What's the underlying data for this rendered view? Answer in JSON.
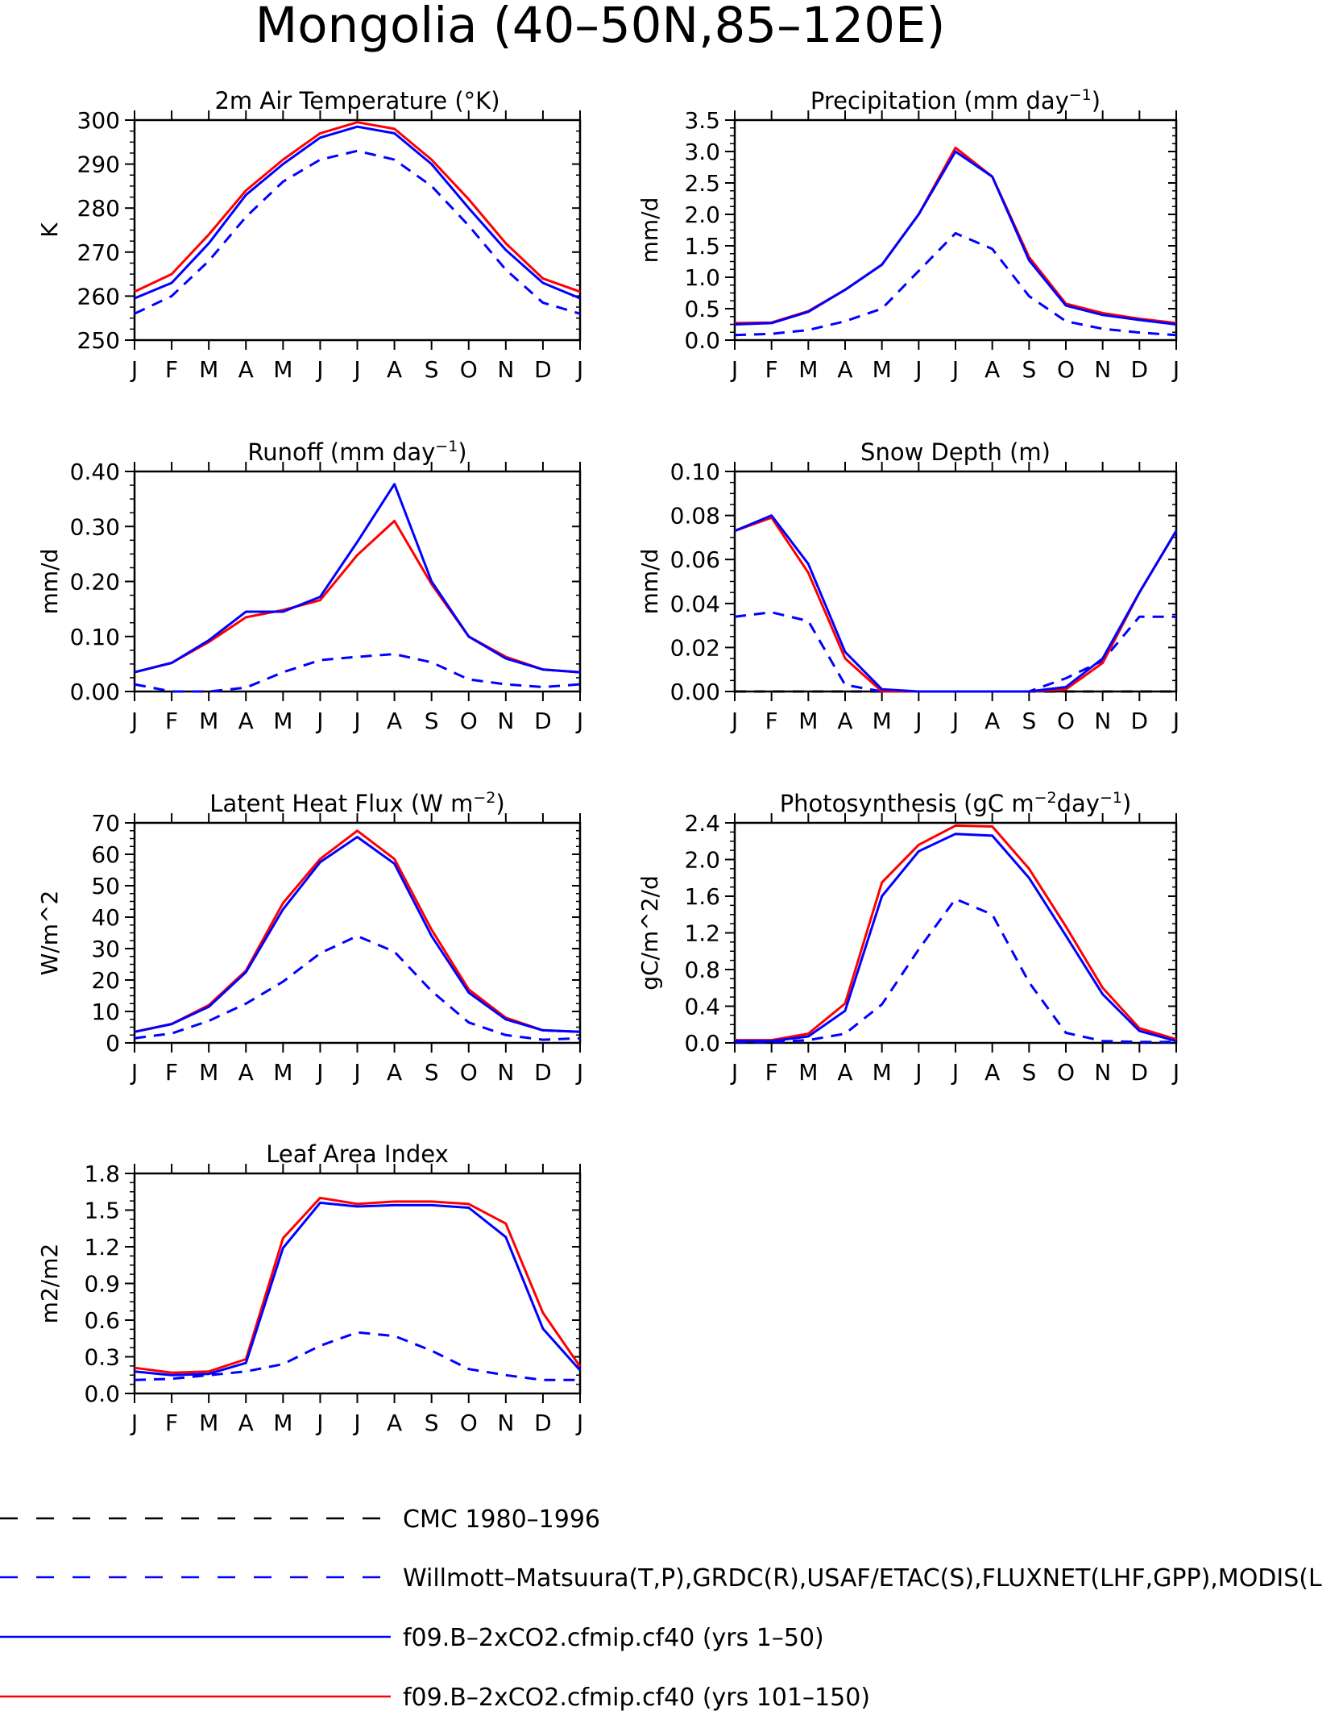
{
  "figure": {
    "title": "Mongolia (40–50N,85–120E)"
  },
  "colors": {
    "axis": "#000000",
    "dark_blue": "#0000ff",
    "red": "#ff0000"
  },
  "legend": {
    "items": [
      {
        "label": "CMC 1980–1996",
        "color": "#000000",
        "dash": "long-dash"
      },
      {
        "label": "Willmott–Matsuura(T,P),GRDC(R),USAF/ETAC(S),FLUXNET(LHF,GPP),MODIS(L",
        "color": "#0000ff",
        "dash": "long-dash"
      },
      {
        "label": "f09.B–2xCO2.cfmip.cf40 (yrs 1–50)",
        "color": "#0000ff",
        "dash": "solid"
      },
      {
        "label": "f09.B–2xCO2.cfmip.cf40 (yrs 101–150)",
        "color": "#ff0000",
        "dash": "solid"
      }
    ]
  },
  "chart_data": [
    {
      "type": "line",
      "title": "2m Air Temperature (°K)",
      "title_parts": [
        {
          "t": "2m Air Temperature (°K)"
        }
      ],
      "ylabel": "K",
      "categories": [
        "J",
        "F",
        "M",
        "A",
        "M",
        "J",
        "J",
        "A",
        "S",
        "O",
        "N",
        "D",
        "J"
      ],
      "ylim": [
        250,
        300
      ],
      "yticks": [
        "250",
        "260",
        "270",
        "280",
        "290",
        "300"
      ],
      "series": [
        {
          "color": "#0000ff",
          "dash": "dash",
          "values": [
            256,
            260,
            268,
            278,
            286,
            291,
            293,
            291,
            285,
            276,
            266,
            258.5,
            256
          ]
        },
        {
          "color": "#ff0000",
          "dash": "solid",
          "values": [
            261,
            265,
            274,
            284,
            291,
            297,
            299.5,
            298,
            291,
            282,
            272,
            264,
            261
          ]
        },
        {
          "color": "#0000ff",
          "dash": "solid",
          "values": [
            259.5,
            263,
            272,
            283,
            290,
            296,
            298.5,
            297,
            290,
            280,
            270.5,
            263,
            259.5
          ]
        }
      ]
    },
    {
      "type": "line",
      "title": "Precipitation (mm day-1)",
      "title_parts": [
        {
          "t": "Precipitation (mm day"
        },
        {
          "t": "−1",
          "sup": true
        },
        {
          "t": ")"
        }
      ],
      "ylabel": "mm/d",
      "categories": [
        "J",
        "F",
        "M",
        "A",
        "M",
        "J",
        "J",
        "A",
        "S",
        "O",
        "N",
        "D",
        "J"
      ],
      "ylim": [
        0,
        3.5
      ],
      "yticks": [
        "0.0",
        "0.5",
        "1.0",
        "1.5",
        "2.0",
        "2.5",
        "3.0",
        "3.5"
      ],
      "series": [
        {
          "color": "#0000ff",
          "dash": "dash",
          "values": [
            0.08,
            0.1,
            0.16,
            0.3,
            0.5,
            1.1,
            1.7,
            1.45,
            0.7,
            0.3,
            0.18,
            0.12,
            0.08
          ]
        },
        {
          "color": "#ff0000",
          "dash": "solid",
          "values": [
            0.27,
            0.28,
            0.46,
            0.8,
            1.2,
            2.0,
            3.06,
            2.6,
            1.32,
            0.58,
            0.43,
            0.34,
            0.27
          ]
        },
        {
          "color": "#0000ff",
          "dash": "solid",
          "values": [
            0.25,
            0.27,
            0.45,
            0.8,
            1.2,
            2.0,
            3.0,
            2.6,
            1.27,
            0.55,
            0.4,
            0.32,
            0.25
          ]
        }
      ]
    },
    {
      "type": "line",
      "title": "Runoff (mm day-1)",
      "title_parts": [
        {
          "t": "Runoff (mm day"
        },
        {
          "t": "−1",
          "sup": true
        },
        {
          "t": ")"
        }
      ],
      "ylabel": "mm/d",
      "categories": [
        "J",
        "F",
        "M",
        "A",
        "M",
        "J",
        "J",
        "A",
        "S",
        "O",
        "N",
        "D",
        "J"
      ],
      "ylim": [
        0,
        0.4
      ],
      "yticks": [
        "0.00",
        "0.10",
        "0.20",
        "0.30",
        "0.40"
      ],
      "series": [
        {
          "color": "#0000ff",
          "dash": "dash",
          "values": [
            0.013,
            0.0,
            0.0,
            0.007,
            0.035,
            0.057,
            0.063,
            0.068,
            0.053,
            0.022,
            0.013,
            0.008,
            0.013
          ]
        },
        {
          "color": "#ff0000",
          "dash": "solid",
          "values": [
            0.035,
            0.052,
            0.09,
            0.135,
            0.148,
            0.166,
            0.248,
            0.31,
            0.195,
            0.1,
            0.063,
            0.04,
            0.035
          ]
        },
        {
          "color": "#0000ff",
          "dash": "solid",
          "values": [
            0.035,
            0.052,
            0.093,
            0.145,
            0.145,
            0.172,
            0.272,
            0.377,
            0.2,
            0.1,
            0.06,
            0.04,
            0.035
          ]
        }
      ]
    },
    {
      "type": "line",
      "title": "Snow Depth (m)",
      "title_parts": [
        {
          "t": "Snow Depth (m)"
        }
      ],
      "ylabel": "mm/d",
      "categories": [
        "J",
        "F",
        "M",
        "A",
        "M",
        "J",
        "J",
        "A",
        "S",
        "O",
        "N",
        "D",
        "J"
      ],
      "ylim": [
        0,
        0.1
      ],
      "yticks": [
        "0.00",
        "0.02",
        "0.04",
        "0.06",
        "0.08",
        "0.10"
      ],
      "series": [
        {
          "color": "#000000",
          "dash": "dash",
          "values": [
            0,
            0,
            0,
            0,
            0,
            0,
            0,
            0,
            0,
            0,
            0,
            0,
            0
          ]
        },
        {
          "color": "#0000ff",
          "dash": "dash",
          "values": [
            0.034,
            0.036,
            0.032,
            0.003,
            0.0,
            0.0,
            0.0,
            0.0,
            0.0,
            0.006,
            0.014,
            0.034,
            0.034
          ]
        },
        {
          "color": "#ff0000",
          "dash": "solid",
          "values": [
            0.073,
            0.079,
            0.054,
            0.015,
            0.0,
            0.0,
            0.0,
            0.0,
            0.0,
            0.001,
            0.013,
            0.045,
            0.073
          ]
        },
        {
          "color": "#0000ff",
          "dash": "solid",
          "values": [
            0.073,
            0.08,
            0.058,
            0.018,
            0.001,
            0.0,
            0.0,
            0.0,
            0.0,
            0.002,
            0.015,
            0.045,
            0.073
          ]
        }
      ]
    },
    {
      "type": "line",
      "title": "Latent Heat Flux (W m-2)",
      "title_parts": [
        {
          "t": "Latent Heat Flux (W m"
        },
        {
          "t": "−2",
          "sup": true
        },
        {
          "t": ")"
        }
      ],
      "ylabel": "W/m^2",
      "categories": [
        "J",
        "F",
        "M",
        "A",
        "M",
        "J",
        "J",
        "A",
        "S",
        "O",
        "N",
        "D",
        "J"
      ],
      "ylim": [
        0,
        70
      ],
      "yticks": [
        "0",
        "10",
        "20",
        "30",
        "40",
        "50",
        "60",
        "70"
      ],
      "series": [
        {
          "color": "#0000ff",
          "dash": "dash",
          "values": [
            1.5,
            3,
            7,
            12.5,
            19.5,
            28.5,
            34,
            29,
            16.5,
            6.5,
            2.5,
            1,
            1.5
          ]
        },
        {
          "color": "#ff0000",
          "dash": "solid",
          "values": [
            3.5,
            6,
            12,
            23,
            44.5,
            58.5,
            67.5,
            58.5,
            36,
            17,
            8,
            4,
            3.5
          ]
        },
        {
          "color": "#0000ff",
          "dash": "solid",
          "values": [
            3.5,
            6,
            11.5,
            22.5,
            42.5,
            57.5,
            65.5,
            57,
            34,
            16,
            7.5,
            4,
            3.5
          ]
        }
      ]
    },
    {
      "type": "line",
      "title": "Photosynthesis (gC m-2day-1)",
      "title_parts": [
        {
          "t": "Photosynthesis (gC m"
        },
        {
          "t": "−2",
          "sup": true
        },
        {
          "t": "day"
        },
        {
          "t": "−1",
          "sup": true
        },
        {
          "t": ")"
        }
      ],
      "ylabel": "gC/m^2/d",
      "categories": [
        "J",
        "F",
        "M",
        "A",
        "M",
        "J",
        "J",
        "A",
        "S",
        "O",
        "N",
        "D",
        "J"
      ],
      "ylim": [
        0,
        2.4
      ],
      "yticks": [
        "0.0",
        "0.4",
        "0.8",
        "1.2",
        "1.6",
        "2.0",
        "2.4"
      ],
      "series": [
        {
          "color": "#0000ff",
          "dash": "dash",
          "values": [
            0.01,
            0.01,
            0.03,
            0.1,
            0.42,
            1.02,
            1.57,
            1.4,
            0.66,
            0.11,
            0.02,
            0.01,
            0.01
          ]
        },
        {
          "color": "#ff0000",
          "dash": "solid",
          "values": [
            0.03,
            0.03,
            0.1,
            0.43,
            1.75,
            2.16,
            2.37,
            2.36,
            1.9,
            1.27,
            0.6,
            0.16,
            0.04
          ]
        },
        {
          "color": "#0000ff",
          "dash": "solid",
          "values": [
            0.02,
            0.02,
            0.07,
            0.35,
            1.6,
            2.09,
            2.28,
            2.26,
            1.8,
            1.17,
            0.53,
            0.13,
            0.02
          ]
        }
      ]
    },
    {
      "type": "line",
      "title": "Leaf Area Index",
      "title_parts": [
        {
          "t": "Leaf Area Index"
        }
      ],
      "ylabel": "m2/m2",
      "categories": [
        "J",
        "F",
        "M",
        "A",
        "M",
        "J",
        "J",
        "A",
        "S",
        "O",
        "N",
        "D",
        "J"
      ],
      "ylim": [
        0,
        1.8
      ],
      "yticks": [
        "0.0",
        "0.3",
        "0.6",
        "0.9",
        "1.2",
        "1.5",
        "1.8"
      ],
      "series": [
        {
          "color": "#0000ff",
          "dash": "dash",
          "values": [
            0.11,
            0.12,
            0.15,
            0.18,
            0.24,
            0.39,
            0.5,
            0.47,
            0.35,
            0.2,
            0.15,
            0.11,
            0.11
          ]
        },
        {
          "color": "#ff0000",
          "dash": "solid",
          "values": [
            0.21,
            0.17,
            0.18,
            0.28,
            1.27,
            1.6,
            1.55,
            1.57,
            1.57,
            1.55,
            1.39,
            0.66,
            0.22
          ]
        },
        {
          "color": "#0000ff",
          "dash": "solid",
          "values": [
            0.18,
            0.15,
            0.16,
            0.25,
            1.19,
            1.56,
            1.53,
            1.54,
            1.54,
            1.52,
            1.28,
            0.53,
            0.19
          ]
        }
      ]
    }
  ]
}
